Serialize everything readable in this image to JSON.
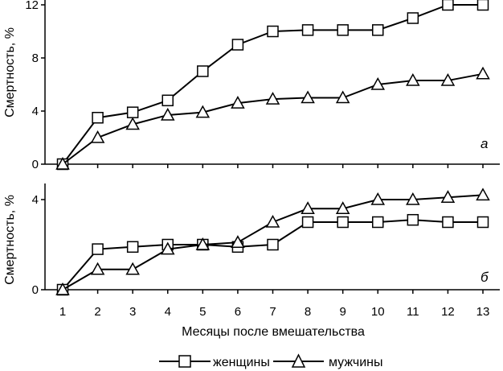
{
  "chart_data": [
    {
      "type": "line",
      "panel_label": "а",
      "ylabel": "Смертность, %",
      "xlabel": "",
      "x": [
        1,
        2,
        3,
        4,
        5,
        6,
        7,
        8,
        9,
        10,
        11,
        12,
        13
      ],
      "ylim": [
        0,
        12
      ],
      "yticks": [
        0,
        4,
        8,
        12
      ],
      "series": [
        {
          "name": "женщины",
          "marker": "square",
          "values": [
            0,
            3.5,
            3.9,
            4.8,
            7.0,
            9.0,
            10.0,
            10.1,
            10.1,
            10.1,
            11.0,
            12.0,
            12.0
          ]
        },
        {
          "name": "мужчины",
          "marker": "triangle",
          "values": [
            0,
            2.0,
            3.0,
            3.7,
            3.9,
            4.6,
            4.9,
            5.0,
            5.0,
            6.0,
            6.3,
            6.3,
            6.8
          ]
        }
      ]
    },
    {
      "type": "line",
      "panel_label": "б",
      "ylabel": "Смертность, %",
      "xlabel": "Месяцы после вмешательства",
      "x": [
        1,
        2,
        3,
        4,
        5,
        6,
        7,
        8,
        9,
        10,
        11,
        12,
        13
      ],
      "xticks": [
        "1",
        "2",
        "3",
        "4",
        "5",
        "6",
        "7",
        "8",
        "9",
        "10",
        "11",
        "12",
        "13"
      ],
      "ylim": [
        0,
        4.5
      ],
      "yticks": [
        0,
        4
      ],
      "series": [
        {
          "name": "женщины",
          "marker": "square",
          "values": [
            0,
            1.8,
            1.9,
            2.0,
            2.0,
            1.9,
            2.0,
            3.0,
            3.0,
            3.0,
            3.1,
            3.0,
            3.0
          ]
        },
        {
          "name": "мужчины",
          "marker": "triangle",
          "values": [
            0,
            0.9,
            0.9,
            1.8,
            2.0,
            2.1,
            3.0,
            3.6,
            3.6,
            4.0,
            4.0,
            4.1,
            4.2
          ]
        }
      ]
    }
  ],
  "legend": {
    "placement": "bottom-center",
    "items": [
      {
        "label": "женщины",
        "marker": "square"
      },
      {
        "label": "мужчины",
        "marker": "triangle"
      }
    ]
  },
  "colors": {
    "line": "#000000",
    "marker_fill": "#ffffff",
    "background": "#ffffff"
  }
}
